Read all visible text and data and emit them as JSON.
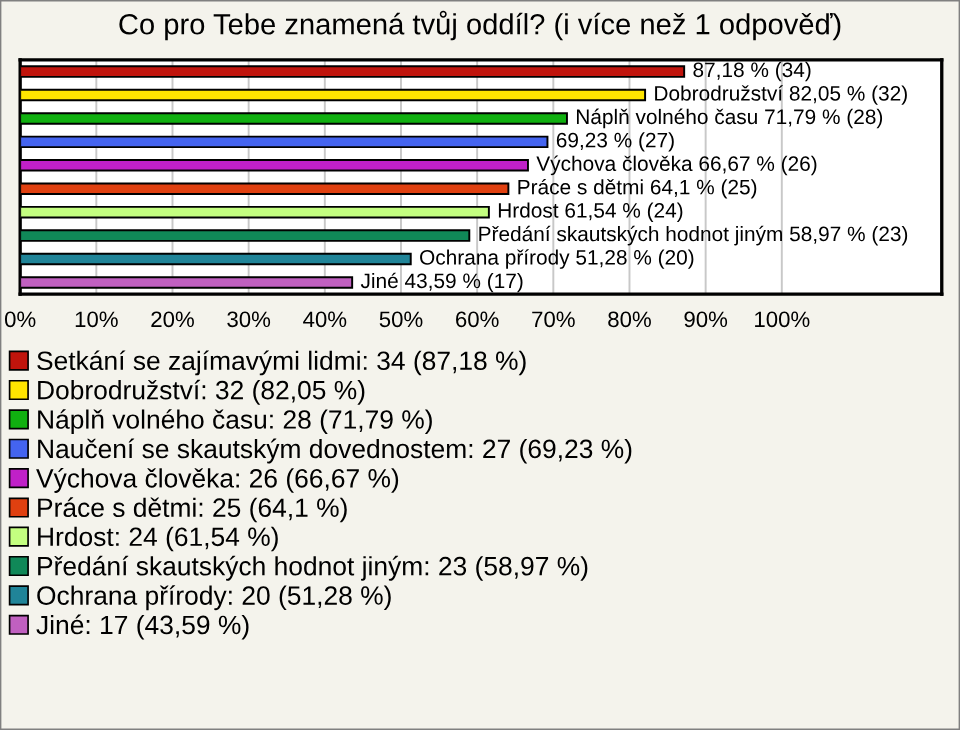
{
  "chart_data": {
    "type": "bar",
    "orientation": "horizontal",
    "title": "Co pro Tebe znamená tvůj oddíl? (i více než 1 odpověď)",
    "categories": [
      null,
      null,
      null,
      null,
      null,
      null,
      null,
      null,
      null,
      null
    ],
    "series": [
      {
        "name": "Setkání se zajímavými lidmi: 34 (87,18 %)",
        "color": "#c0140c",
        "values": [
          87.18,
          null,
          null,
          null,
          null,
          null,
          null,
          null,
          null,
          null
        ],
        "value_labels": [
          "87,18 % (34)",
          null,
          null,
          null,
          null,
          null,
          null,
          null,
          null,
          null
        ]
      },
      {
        "name": "Dobrodružství: 32 (82,05 %)",
        "color": "#ffe500",
        "values": [
          null,
          82.05,
          null,
          null,
          null,
          null,
          null,
          null,
          null,
          null
        ],
        "value_labels": [
          null,
          "Dobrodružství 82,05 % (32)",
          null,
          null,
          null,
          null,
          null,
          null,
          null,
          null
        ]
      },
      {
        "name": "Náplň volného času: 28 (71,79 %)",
        "color": "#10b010",
        "values": [
          null,
          null,
          71.79,
          null,
          null,
          null,
          null,
          null,
          null,
          null
        ],
        "value_labels": [
          null,
          null,
          "Náplň volného času 71,79 % (28)",
          null,
          null,
          null,
          null,
          null,
          null,
          null
        ]
      },
      {
        "name": "Naučení se skautským dovednostem: 27 (69,23 %)",
        "color": "#4464f0",
        "values": [
          null,
          null,
          null,
          69.23,
          null,
          null,
          null,
          null,
          null,
          null
        ],
        "value_labels": [
          null,
          null,
          null,
          "69,23 % (27)",
          null,
          null,
          null,
          null,
          null,
          null
        ]
      },
      {
        "name": "Výchova člověka: 26 (66,67 %)",
        "color": "#c020c8",
        "values": [
          null,
          null,
          null,
          null,
          66.67,
          null,
          null,
          null,
          null,
          null
        ],
        "value_labels": [
          null,
          null,
          null,
          null,
          "Výchova člověka 66,67 % (26)",
          null,
          null,
          null,
          null,
          null
        ]
      },
      {
        "name": "Práce s dětmi: 25 (64,1 %)",
        "color": "#e04010",
        "values": [
          null,
          null,
          null,
          null,
          null,
          64.1,
          null,
          null,
          null,
          null
        ],
        "value_labels": [
          null,
          null,
          null,
          null,
          null,
          "Práce s dětmi 64,1 % (25)",
          null,
          null,
          null,
          null
        ]
      },
      {
        "name": "Hrdost: 24 (61,54 %)",
        "color": "#c4ff80",
        "values": [
          null,
          null,
          null,
          null,
          null,
          null,
          61.54,
          null,
          null,
          null
        ],
        "value_labels": [
          null,
          null,
          null,
          null,
          null,
          null,
          "Hrdost 61,54 % (24)",
          null,
          null,
          null
        ]
      },
      {
        "name": "Předání skautských hodnot jiným: 23 (58,97 %)",
        "color": "#108858",
        "values": [
          null,
          null,
          null,
          null,
          null,
          null,
          null,
          58.97,
          null,
          null
        ],
        "value_labels": [
          null,
          null,
          null,
          null,
          null,
          null,
          null,
          "Předání skautských hodnot jiným 58,97 % (23)",
          null,
          null
        ]
      },
      {
        "name": "Ochrana přírody: 20 (51,28 %)",
        "color": "#208498",
        "values": [
          null,
          null,
          null,
          null,
          null,
          null,
          null,
          null,
          51.28,
          null
        ],
        "value_labels": [
          null,
          null,
          null,
          null,
          null,
          null,
          null,
          null,
          "Ochrana přírody 51,28 % (20)",
          null
        ]
      },
      {
        "name": "Jiné: 17 (43,59 %)",
        "color": "#c060c0",
        "values": [
          null,
          null,
          null,
          null,
          null,
          null,
          null,
          null,
          null,
          43.59
        ],
        "value_labels": [
          null,
          null,
          null,
          null,
          null,
          null,
          null,
          null,
          null,
          "Jiné 43,59 % (17)"
        ]
      }
    ],
    "xlim": [
      0,
      121
    ],
    "xticks": [
      {
        "value": 0,
        "label": "0%"
      },
      {
        "value": 10,
        "label": "10%"
      },
      {
        "value": 20,
        "label": "20%"
      },
      {
        "value": 30,
        "label": "30%"
      },
      {
        "value": 40,
        "label": "40%"
      },
      {
        "value": 50,
        "label": "50%"
      },
      {
        "value": 60,
        "label": "60%"
      },
      {
        "value": 70,
        "label": "70%"
      },
      {
        "value": 80,
        "label": "80%"
      },
      {
        "value": 90,
        "label": "90%"
      },
      {
        "value": 100,
        "label": "100%"
      }
    ],
    "grid": "x",
    "legend": "bottom",
    "tick_labels": "x"
  }
}
